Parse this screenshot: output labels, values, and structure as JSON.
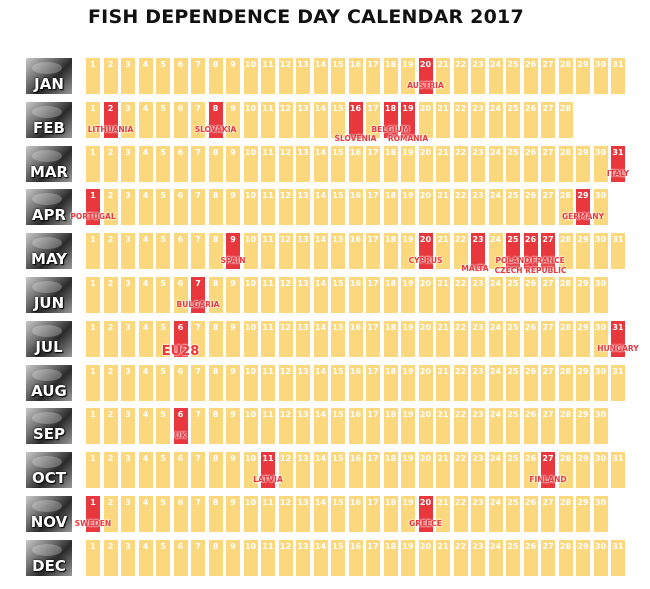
{
  "title": "FISH DEPENDENCE DAY CALENDAR 2017",
  "colors": {
    "normal_day": "#fbd77e",
    "highlight_day": "#e8383e",
    "country_text": "#e8383e"
  },
  "months": [
    {
      "label": "JAN",
      "days": 31,
      "highlights": [
        {
          "day": 20,
          "country": "AUSTRIA"
        }
      ]
    },
    {
      "label": "FEB",
      "days": 28,
      "highlights": [
        {
          "day": 2,
          "country": "LITHUANIA"
        },
        {
          "day": 8,
          "country": "SLOVAKIA"
        },
        {
          "day": 16,
          "country": "SLOVENIA"
        },
        {
          "day": 18,
          "country": "BELGIUM"
        },
        {
          "day": 19,
          "country": "ROMANIA"
        }
      ]
    },
    {
      "label": "MAR",
      "days": 31,
      "highlights": [
        {
          "day": 31,
          "country": "ITALY"
        }
      ]
    },
    {
      "label": "APR",
      "days": 30,
      "highlights": [
        {
          "day": 1,
          "country": "PORTUGAL"
        },
        {
          "day": 29,
          "country": "GERMANY"
        }
      ]
    },
    {
      "label": "MAY",
      "days": 31,
      "highlights": [
        {
          "day": 9,
          "country": "SPAIN"
        },
        {
          "day": 20,
          "country": "CYPRUS"
        },
        {
          "day": 23,
          "country": "MALTA"
        },
        {
          "day": 25,
          "country": "POLAND"
        },
        {
          "day": 26,
          "country": "CZECH REPUBLIC"
        },
        {
          "day": 27,
          "country": "FRANCE"
        }
      ]
    },
    {
      "label": "JUN",
      "days": 30,
      "highlights": [
        {
          "day": 7,
          "country": "BULGARIA"
        }
      ]
    },
    {
      "label": "JUL",
      "days": 31,
      "highlights": [
        {
          "day": 6,
          "country": "EU28"
        },
        {
          "day": 31,
          "country": "HUNGARY"
        }
      ]
    },
    {
      "label": "AUG",
      "days": 31,
      "highlights": []
    },
    {
      "label": "SEP",
      "days": 30,
      "highlights": [
        {
          "day": 6,
          "country": "UK"
        }
      ]
    },
    {
      "label": "OCT",
      "days": 31,
      "highlights": [
        {
          "day": 11,
          "country": "LATVIA"
        },
        {
          "day": 27,
          "country": "FINLAND"
        }
      ]
    },
    {
      "label": "NOV",
      "days": 30,
      "highlights": [
        {
          "day": 1,
          "country": "SWEDEN"
        },
        {
          "day": 20,
          "country": "GREECE"
        }
      ]
    },
    {
      "label": "DEC",
      "days": 31,
      "highlights": []
    }
  ]
}
